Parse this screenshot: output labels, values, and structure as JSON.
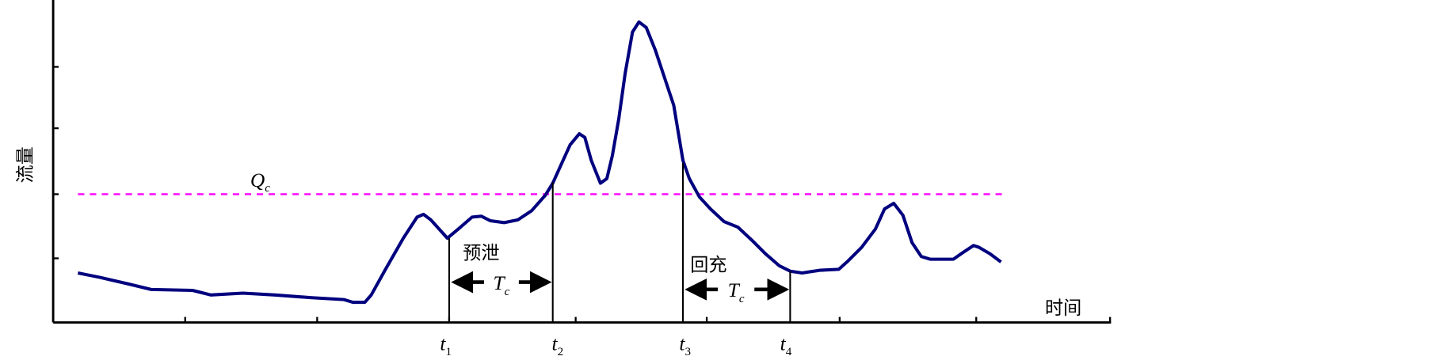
{
  "axes": {
    "y_label": "流量",
    "x_label": "时间"
  },
  "threshold": {
    "symbol": "Q",
    "subscript": "c",
    "color": "#ff00ff"
  },
  "curve": {
    "color": "#00007f"
  },
  "annotations": {
    "pre_release": "预泄",
    "refill": "回充",
    "duration_symbol": "T",
    "duration_subscript": "c"
  },
  "time_markers": [
    {
      "symbol": "t",
      "subscript": "1"
    },
    {
      "symbol": "t",
      "subscript": "2"
    },
    {
      "symbol": "t",
      "subscript": "3"
    },
    {
      "symbol": "t",
      "subscript": "4"
    }
  ]
}
